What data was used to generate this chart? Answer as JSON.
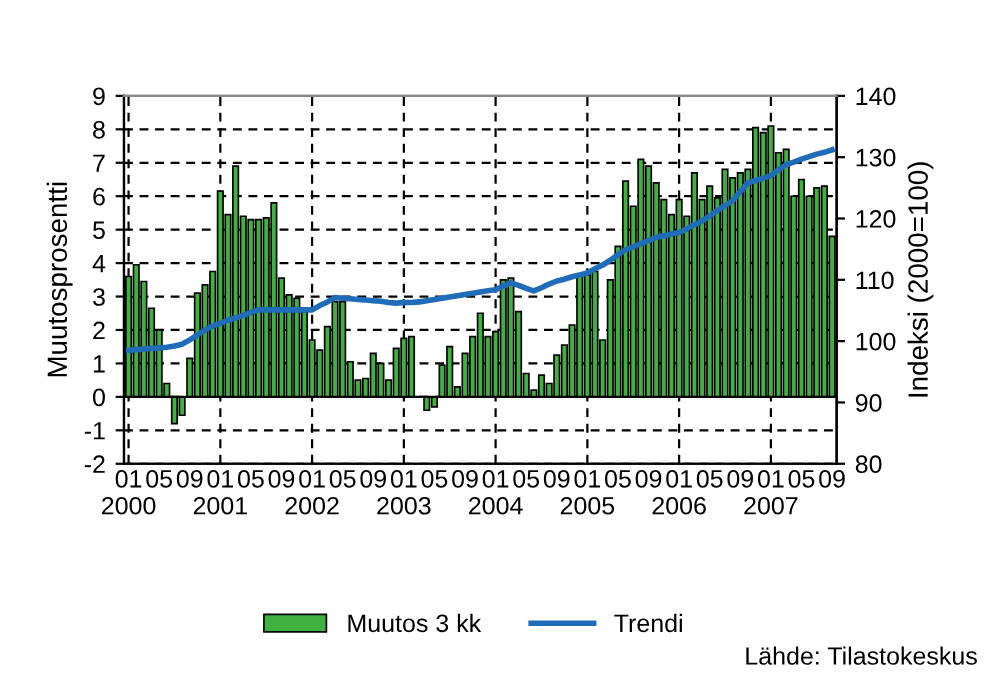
{
  "chart_data": {
    "type": "bar",
    "ylabel": "Muutosprosentti",
    "y2label": "Indeksi (2000=100)",
    "categories": [
      "01\n2000",
      null,
      null,
      null,
      "05",
      null,
      null,
      null,
      "09",
      null,
      null,
      null,
      "01\n2001",
      null,
      null,
      null,
      "05",
      null,
      null,
      null,
      "09",
      null,
      null,
      null,
      "01\n2002",
      null,
      null,
      null,
      "05",
      null,
      null,
      null,
      "09",
      null,
      null,
      null,
      "01\n2003",
      null,
      null,
      null,
      "05",
      null,
      null,
      null,
      "09",
      null,
      null,
      null,
      "01\n2004",
      null,
      null,
      null,
      "05",
      null,
      null,
      null,
      "09",
      null,
      null,
      null,
      "01\n2005",
      null,
      null,
      null,
      "05",
      null,
      null,
      null,
      "09",
      null,
      null,
      null,
      "01\n2006",
      null,
      null,
      null,
      "05",
      null,
      null,
      null,
      "09",
      null,
      null,
      null,
      "01\n2007",
      null,
      null,
      null,
      "05",
      null,
      null,
      null,
      "09"
    ],
    "series": [
      {
        "name": "Muutos 3 kk",
        "color": "#40b040",
        "values": [
          3.6,
          3.95,
          3.45,
          2.65,
          2.0,
          0.4,
          -0.8,
          -0.55,
          1.15,
          3.1,
          3.35,
          3.75,
          6.15,
          5.45,
          6.9,
          5.4,
          5.3,
          5.3,
          5.35,
          5.8,
          3.55,
          3.05,
          2.95,
          2.55,
          1.7,
          1.4,
          2.1,
          2.85,
          2.85,
          1.05,
          0.5,
          0.55,
          1.3,
          1.0,
          0.5,
          1.45,
          1.75,
          1.8,
          null,
          -0.4,
          -0.3,
          0.95,
          1.5,
          0.3,
          1.3,
          1.8,
          2.5,
          1.8,
          1.95,
          3.5,
          3.55,
          2.55,
          0.7,
          0.2,
          0.65,
          0.4,
          1.25,
          1.55,
          2.15,
          3.65,
          3.65,
          3.75,
          1.7,
          3.5,
          4.5,
          6.45,
          5.7,
          7.1,
          6.9,
          6.4,
          5.9,
          5.45,
          5.9,
          5.4,
          6.7,
          5.9,
          6.3,
          5.95,
          6.8,
          6.55,
          6.7,
          6.8,
          8.05,
          7.9,
          8.1,
          7.3,
          7.4,
          6.0,
          6.5,
          6.0,
          6.25,
          6.3,
          4.8
        ]
      },
      {
        "name": "Trendi",
        "type": "line",
        "axis": "y2",
        "color": "#1f6cb8",
        "values": [
          98.5,
          98.6,
          98.7,
          98.8,
          98.9,
          99.0,
          99.2,
          99.5,
          100.2,
          101,
          101.8,
          102.5,
          102.9,
          103.4,
          103.8,
          104.2,
          104.7,
          105.1,
          105.1,
          105.1,
          105.1,
          105.1,
          105.1,
          105.1,
          105.1,
          105.8,
          106.4,
          107.1,
          107.0,
          106.9,
          106.8,
          106.7,
          106.6,
          106.5,
          106.3,
          106.2,
          106.3,
          106.3,
          106.4,
          106.6,
          106.8,
          107.0,
          107.2,
          107.4,
          107.6,
          107.8,
          108.0,
          108.2,
          108.4,
          109.0,
          109.5,
          109.1,
          108.6,
          108.2,
          108.7,
          109.3,
          109.8,
          110.1,
          110.5,
          110.8,
          111.1,
          111.8,
          112.4,
          113.2,
          114.1,
          114.9,
          115.4,
          115.9,
          116.4,
          116.9,
          117.2,
          117.5,
          117.7,
          118.3,
          119.0,
          119.6,
          120.4,
          121.3,
          122.1,
          122.9,
          124.4,
          125.8,
          126.2,
          126.6,
          127,
          127.9,
          128.8,
          129.2,
          129.7,
          130.1,
          130.5,
          130.8,
          131.2
        ]
      }
    ],
    "ylim": [
      -2,
      9
    ],
    "yticks": [
      -2,
      -1,
      0,
      1,
      2,
      3,
      4,
      5,
      6,
      7,
      8,
      9
    ],
    "y2lim": [
      80,
      140
    ],
    "y2ticks": [
      80,
      90,
      100,
      110,
      120,
      130,
      140
    ],
    "grid": true,
    "legend": "bottom",
    "annotations": [
      "Lähde: Tilastokeskus"
    ]
  }
}
